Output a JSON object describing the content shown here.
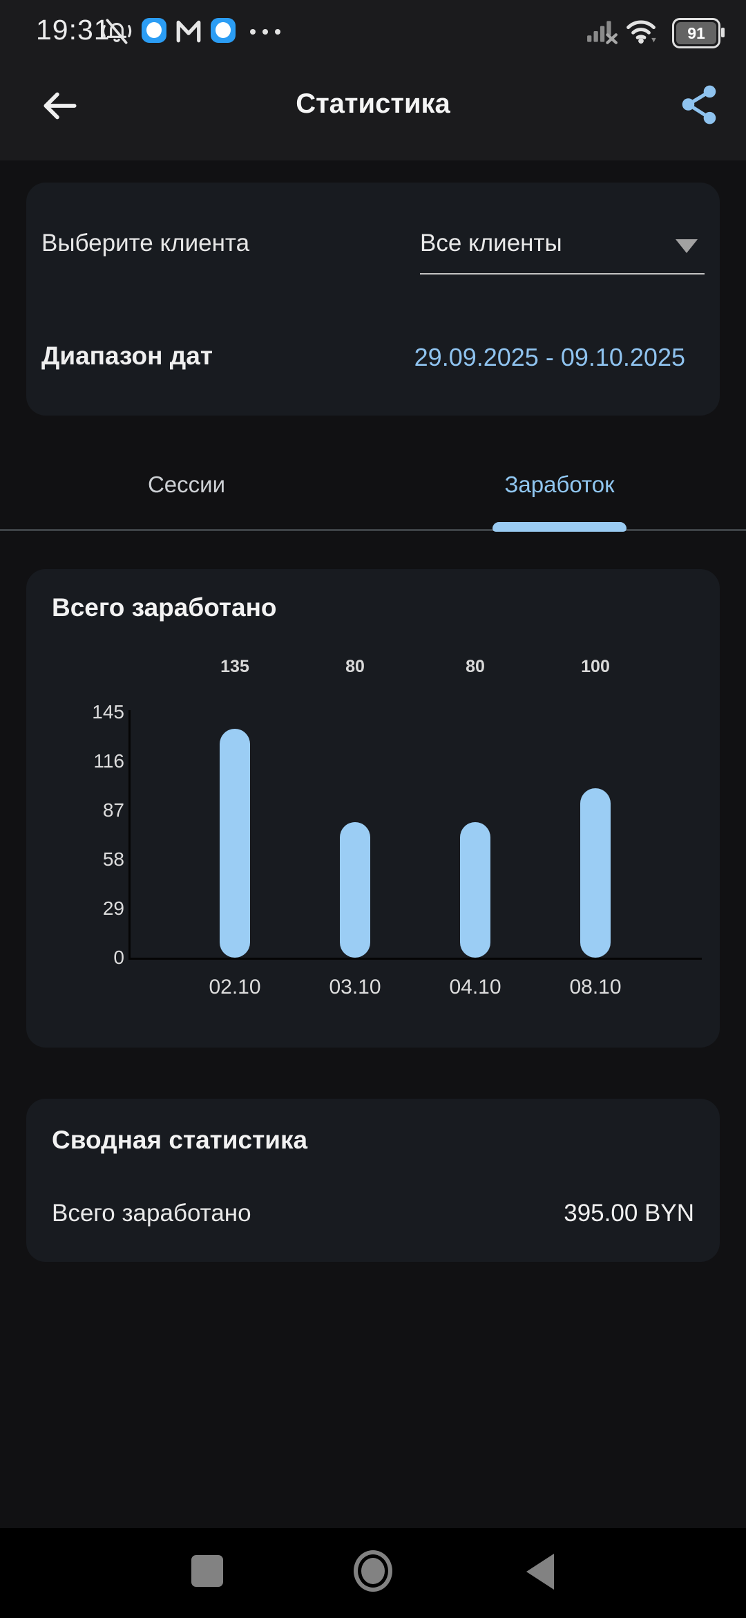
{
  "status_bar": {
    "time": "19:31",
    "battery_percent": "91"
  },
  "header": {
    "title": "Статистика"
  },
  "filter_card": {
    "client_label": "Выберите клиента",
    "client_value": "Все клиенты",
    "date_label": "Диапазон дат",
    "date_range": "29.09.2025 - 09.10.2025"
  },
  "tabs": {
    "sessions": "Сессии",
    "earnings": "Заработок",
    "active": "Заработок"
  },
  "chart_data": {
    "type": "bar",
    "title": "Всего заработано",
    "categories": [
      "02.10",
      "03.10",
      "04.10",
      "08.10"
    ],
    "values": [
      135,
      80,
      80,
      100
    ],
    "value_labels": [
      "135",
      "80",
      "80",
      "100"
    ],
    "y_ticks": [
      145,
      116,
      87,
      58,
      29,
      0
    ],
    "ylim": [
      0,
      145
    ],
    "grid": false,
    "bar_color": "#9BCDF4"
  },
  "summary_card": {
    "title": "Сводная статистика",
    "total_label": "Всего заработано",
    "total_value": "395.00 BYN"
  },
  "colors": {
    "accent_blue": "#8FC3EF",
    "bar_blue": "#9BCDF4",
    "card_bg": "#181B20",
    "page_bg": "#111113",
    "top_bg": "#1B1B1D",
    "divider": "#3E4246",
    "nav_icon": "#828282"
  },
  "icons": {
    "back": "arrow-left",
    "share": "share-nodes",
    "client_dropdown": "caret-down",
    "notifications": "bell-slash",
    "app_chip_1": "blue-rounded-app",
    "gmail": "gmail-m",
    "app_chip_2": "blue-rounded-app",
    "more": "ellipsis",
    "signal": "signal-bars-no-sim",
    "wifi": "wifi",
    "battery": "battery-horizontal",
    "nav_recents": "square",
    "nav_home": "ring",
    "nav_back": "triangle-left"
  }
}
